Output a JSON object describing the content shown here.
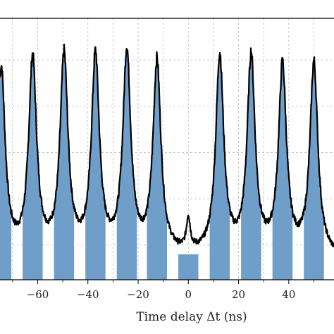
{
  "chart_data": {
    "type": "line",
    "title": "",
    "xlabel": "Time delay Δt (ns)",
    "ylabel": "",
    "xlim": [
      -75,
      58
    ],
    "ylim": [
      0.05,
      1.18
    ],
    "grid": true,
    "x_ticks": [
      -60,
      -40,
      -20,
      0,
      20,
      40
    ],
    "x_tick_labels": [
      "−60",
      "−40",
      "−20",
      "0",
      "20",
      "40"
    ],
    "y_gridlines": [
      0.2,
      0.4,
      0.6,
      0.8,
      1.0
    ],
    "peak_period": 12.5,
    "series": [
      {
        "kind": "line",
        "color": "#000000",
        "peaks": [
          {
            "x": -74.5,
            "y": 0.95
          },
          {
            "x": -62.0,
            "y": 0.98
          },
          {
            "x": -49.5,
            "y": 0.99
          },
          {
            "x": -37.0,
            "y": 0.99
          },
          {
            "x": -24.5,
            "y": 1.01
          },
          {
            "x": -12.5,
            "y": 0.97
          },
          {
            "x": 0.0,
            "y": 0.28
          },
          {
            "x": 12.5,
            "y": 1.0
          },
          {
            "x": 25.0,
            "y": 0.99
          },
          {
            "x": 37.5,
            "y": 0.95
          },
          {
            "x": 50.0,
            "y": 0.97
          }
        ],
        "baseline": 0.14
      },
      {
        "kind": "bars",
        "color": "#6f9ec9",
        "bar_width": 8,
        "center_bar_x": 0,
        "center_bar_top": 0.16
      }
    ]
  }
}
